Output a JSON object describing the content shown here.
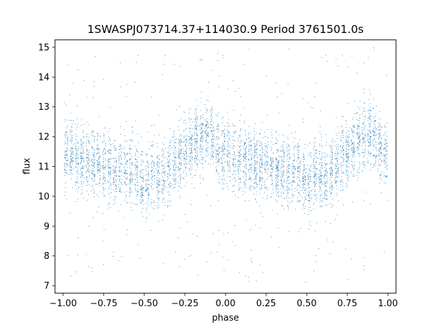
{
  "chart_data": {
    "type": "scatter",
    "title": "1SWASPJ073714.37+114030.9 Period 3761501.0s",
    "xlabel": "phase",
    "ylabel": "flux",
    "xlim": [
      -1.05,
      1.05
    ],
    "ylim": [
      6.75,
      15.25
    ],
    "xticks": [
      -1.0,
      -0.75,
      -0.5,
      -0.25,
      0.0,
      0.25,
      0.5,
      0.75,
      1.0
    ],
    "xtick_labels": [
      "−1.00",
      "−0.75",
      "−0.50",
      "−0.25",
      "0.00",
      "0.25",
      "0.50",
      "0.75",
      "1.00"
    ],
    "yticks": [
      7,
      8,
      9,
      10,
      11,
      12,
      13,
      14,
      15
    ],
    "ytick_labels": [
      "7",
      "8",
      "9",
      "10",
      "11",
      "12",
      "13",
      "14",
      "15"
    ],
    "grid": false,
    "marker_color": "#1f77b4",
    "series": [
      {
        "profile": [
          {
            "phase": -1.0,
            "flux": 11.4
          },
          {
            "phase": -0.95,
            "flux": 11.3
          },
          {
            "phase": -0.9,
            "flux": 11.2
          },
          {
            "phase": -0.85,
            "flux": 11.2
          },
          {
            "phase": -0.8,
            "flux": 11.1
          },
          {
            "phase": -0.75,
            "flux": 11.0
          },
          {
            "phase": -0.7,
            "flux": 10.9
          },
          {
            "phase": -0.65,
            "flux": 10.9
          },
          {
            "phase": -0.6,
            "flux": 10.8
          },
          {
            "phase": -0.55,
            "flux": 10.8
          },
          {
            "phase": -0.5,
            "flux": 10.3
          },
          {
            "phase": -0.45,
            "flux": 10.8
          },
          {
            "phase": -0.4,
            "flux": 10.6
          },
          {
            "phase": -0.35,
            "flux": 10.9
          },
          {
            "phase": -0.3,
            "flux": 11.3
          },
          {
            "phase": -0.25,
            "flux": 11.5
          },
          {
            "phase": -0.2,
            "flux": 11.8
          },
          {
            "phase": -0.15,
            "flux": 12.0
          },
          {
            "phase": -0.1,
            "flux": 12.1
          },
          {
            "phase": -0.05,
            "flux": 11.6
          },
          {
            "phase": 0.0,
            "flux": 11.4
          },
          {
            "phase": 0.05,
            "flux": 11.3
          },
          {
            "phase": 0.1,
            "flux": 11.2
          },
          {
            "phase": 0.15,
            "flux": 11.2
          },
          {
            "phase": 0.2,
            "flux": 11.1
          },
          {
            "phase": 0.25,
            "flux": 11.0
          },
          {
            "phase": 0.3,
            "flux": 10.9
          },
          {
            "phase": 0.35,
            "flux": 10.9
          },
          {
            "phase": 0.4,
            "flux": 10.8
          },
          {
            "phase": 0.45,
            "flux": 10.8
          },
          {
            "phase": 0.5,
            "flux": 10.3
          },
          {
            "phase": 0.55,
            "flux": 10.8
          },
          {
            "phase": 0.6,
            "flux": 10.6
          },
          {
            "phase": 0.65,
            "flux": 10.9
          },
          {
            "phase": 0.7,
            "flux": 11.3
          },
          {
            "phase": 0.75,
            "flux": 11.5
          },
          {
            "phase": 0.8,
            "flux": 11.8
          },
          {
            "phase": 0.85,
            "flux": 12.0
          },
          {
            "phase": 0.9,
            "flux": 12.1
          },
          {
            "phase": 0.95,
            "flux": 11.6
          },
          {
            "phase": 1.0,
            "flux": 11.4
          }
        ],
        "scatter_sd": 0.55,
        "outlier_fraction": 0.06,
        "outlier_range": [
          7.1,
          15.0
        ],
        "point_count": 5200
      }
    ]
  }
}
